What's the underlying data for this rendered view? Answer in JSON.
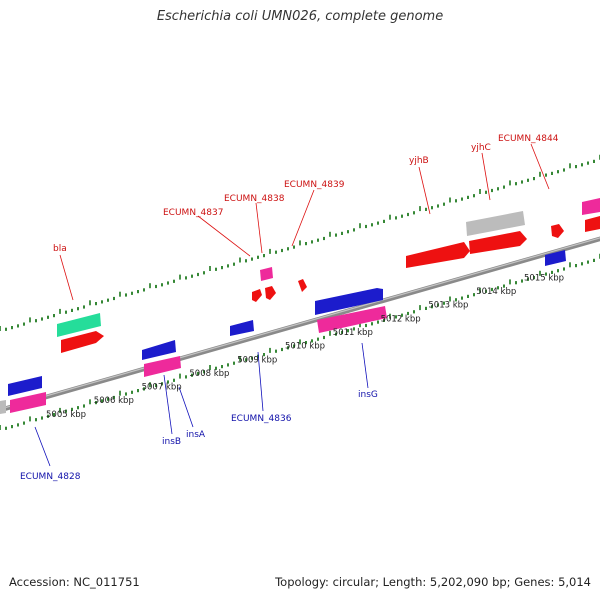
{
  "title": "Escherichia coli UMN026, complete genome",
  "footer": {
    "accession": "Accession: NC_011751",
    "summary": "Topology: circular; Length: 5,202,090 bp; Genes: 5,014"
  },
  "colors": {
    "backbone": "#888888",
    "ticks": "#1f7a1f",
    "forward_cds": "#ee1111",
    "reverse_cds": "#1111cc",
    "forward_label": "#cc1111",
    "reverse_label": "#1111aa",
    "gene_pink": "#ee2299",
    "gene_green": "#22dd99",
    "gene_gray": "#bbbbbb"
  },
  "scale_labels": [
    {
      "kbp": 5005,
      "text": "5005 kbp"
    },
    {
      "kbp": 5006,
      "text": "5006 kbp"
    },
    {
      "kbp": 5007,
      "text": "5007 kbp"
    },
    {
      "kbp": 5008,
      "text": "5008 kbp"
    },
    {
      "kbp": 5009,
      "text": "5009 kbp"
    },
    {
      "kbp": 5010,
      "text": "5010 kbp"
    },
    {
      "kbp": 5011,
      "text": "5011 kbp"
    },
    {
      "kbp": 5012,
      "text": "5012 kbp"
    },
    {
      "kbp": 5013,
      "text": "5013 kbp"
    },
    {
      "kbp": 5014,
      "text": "5014 kbp"
    },
    {
      "kbp": 5015,
      "text": "5015 kbp"
    }
  ],
  "labels_forward": [
    "bla",
    "ECUMN_4837",
    "ECUMN_4838",
    "ECUMN_4839",
    "yjhB",
    "yjhC",
    "ECUMN_4844"
  ],
  "labels_reverse": [
    "ECUMN_4828",
    "insB",
    "insA",
    "ECUMN_4836",
    "insG"
  ]
}
